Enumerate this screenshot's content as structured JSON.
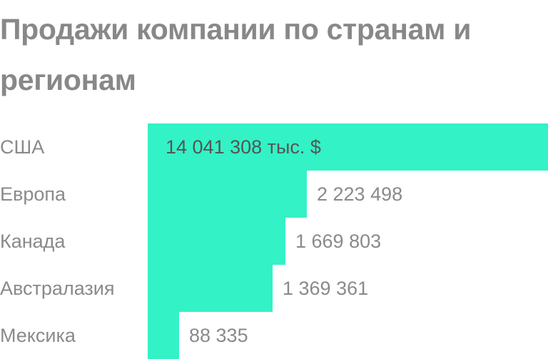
{
  "title": "Продажи компании по странам и регионам",
  "colors": {
    "bar": "#33f2c6",
    "text": "#8a8a8a",
    "title": "#888888"
  },
  "chart_data": {
    "type": "bar",
    "orientation": "horizontal",
    "title": "Продажи компании по странам и регионам",
    "categories": [
      "США",
      "Европа",
      "Канада",
      "Австралазия",
      "Мексика"
    ],
    "values": [
      14041308,
      2223498,
      1669803,
      1369361,
      88335
    ],
    "value_labels": [
      "14 041 308 тыс. $",
      "2 223 498",
      "1 669 803",
      "1 369 361",
      "88 335"
    ],
    "unit": "тыс. $",
    "xlabel": "",
    "ylabel": "",
    "grid": false,
    "legend": "none"
  }
}
